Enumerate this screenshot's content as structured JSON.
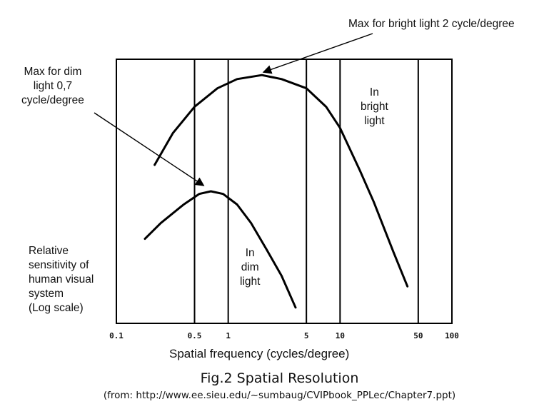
{
  "chart_data": {
    "type": "line",
    "xlabel": "Spatial frequency (cycles/degree)",
    "ylabel": "Relative\nsensitivity of\nhuman visual\nsystem\n(Log scale)",
    "x_scale": "log",
    "xlim": [
      0.1,
      100
    ],
    "x_ticks": [
      {
        "value": 0.1,
        "label": "0.1"
      },
      {
        "value": 0.5,
        "label": "0.5"
      },
      {
        "value": 1,
        "label": "1"
      },
      {
        "value": 5,
        "label": "5"
      },
      {
        "value": 10,
        "label": "10"
      },
      {
        "value": 50,
        "label": "50"
      },
      {
        "value": 100,
        "label": "100"
      }
    ],
    "series": [
      {
        "name": "In\nbright\nlight",
        "points": [
          [
            0.22,
            0.6
          ],
          [
            0.32,
            0.72
          ],
          [
            0.5,
            0.82
          ],
          [
            0.8,
            0.89
          ],
          [
            1.2,
            0.925
          ],
          [
            2,
            0.94
          ],
          [
            3,
            0.925
          ],
          [
            5,
            0.89
          ],
          [
            7.5,
            0.82
          ],
          [
            10,
            0.74
          ],
          [
            15,
            0.58
          ],
          [
            20,
            0.46
          ],
          [
            30,
            0.27
          ],
          [
            40,
            0.14
          ]
        ]
      },
      {
        "name": "In\ndim\nlight",
        "points": [
          [
            0.18,
            0.32
          ],
          [
            0.25,
            0.38
          ],
          [
            0.4,
            0.45
          ],
          [
            0.55,
            0.49
          ],
          [
            0.7,
            0.5
          ],
          [
            0.9,
            0.49
          ],
          [
            1.2,
            0.45
          ],
          [
            1.6,
            0.38
          ],
          [
            2.2,
            0.28
          ],
          [
            3,
            0.18
          ],
          [
            4,
            0.06
          ]
        ]
      }
    ],
    "annotations": [
      {
        "text": "Max for bright light 2 cycle/degree",
        "x": 2,
        "y": 0.94
      },
      {
        "text": "Max for dim\nlight 0,7\ncycle/degree",
        "x": 0.7,
        "y": 0.5
      }
    ],
    "grid": true
  },
  "figure": {
    "caption": "Fig.2 Spatial Resolution",
    "source": "(from: http://www.ee.sieu.edu/~sumbaug/CVIPbook_PPLec/Chapter7.ppt)"
  }
}
